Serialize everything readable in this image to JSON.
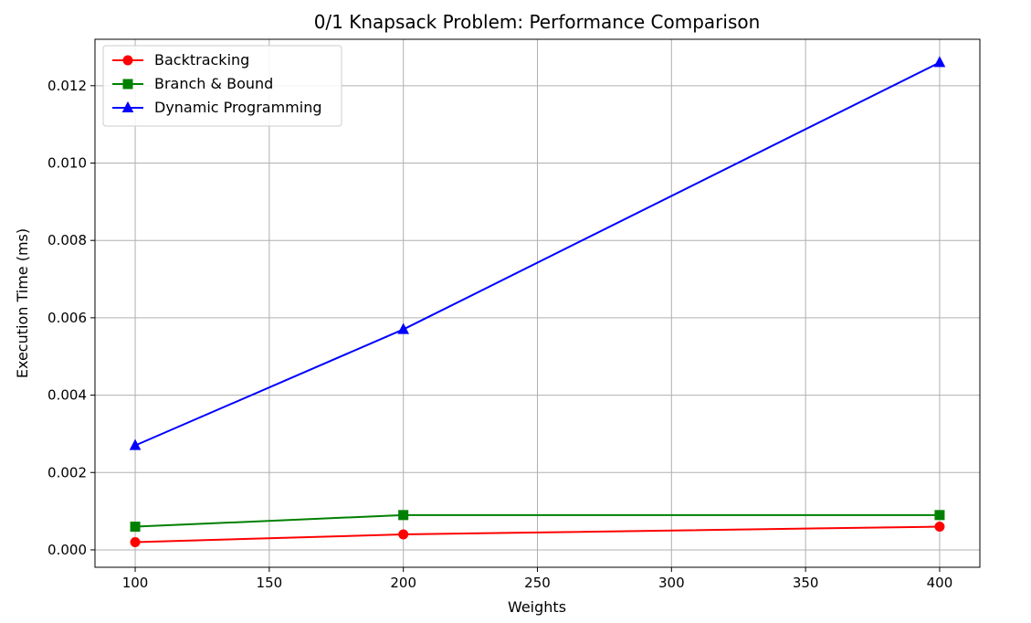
{
  "chart_data": {
    "type": "line",
    "title": "0/1 Knapsack Problem: Performance Comparison",
    "xlabel": "Weights",
    "ylabel": "Execution Time (ms)",
    "x": [
      100,
      200,
      400
    ],
    "xlim": [
      85,
      415
    ],
    "ylim": [
      -0.00045,
      0.0132
    ],
    "xticks": [
      100,
      150,
      200,
      250,
      300,
      350,
      400
    ],
    "xtick_labels": [
      "100",
      "150",
      "200",
      "250",
      "300",
      "350",
      "400"
    ],
    "yticks": [
      0,
      0.002,
      0.004,
      0.006,
      0.008,
      0.01,
      0.012
    ],
    "ytick_labels": [
      "0.000",
      "0.002",
      "0.004",
      "0.006",
      "0.008",
      "0.010",
      "0.012"
    ],
    "grid": true,
    "legend_position": "top-left",
    "series": [
      {
        "name": "Backtracking",
        "values": [
          0.0002,
          0.0004,
          0.0006
        ],
        "color": "#ff0000",
        "marker": "circle"
      },
      {
        "name": "Branch & Bound",
        "values": [
          0.0006,
          0.0009,
          0.0009
        ],
        "color": "#008000",
        "marker": "square"
      },
      {
        "name": "Dynamic Programming",
        "values": [
          0.0027,
          0.0057,
          0.0126
        ],
        "color": "#0000ff",
        "marker": "triangle"
      }
    ]
  }
}
